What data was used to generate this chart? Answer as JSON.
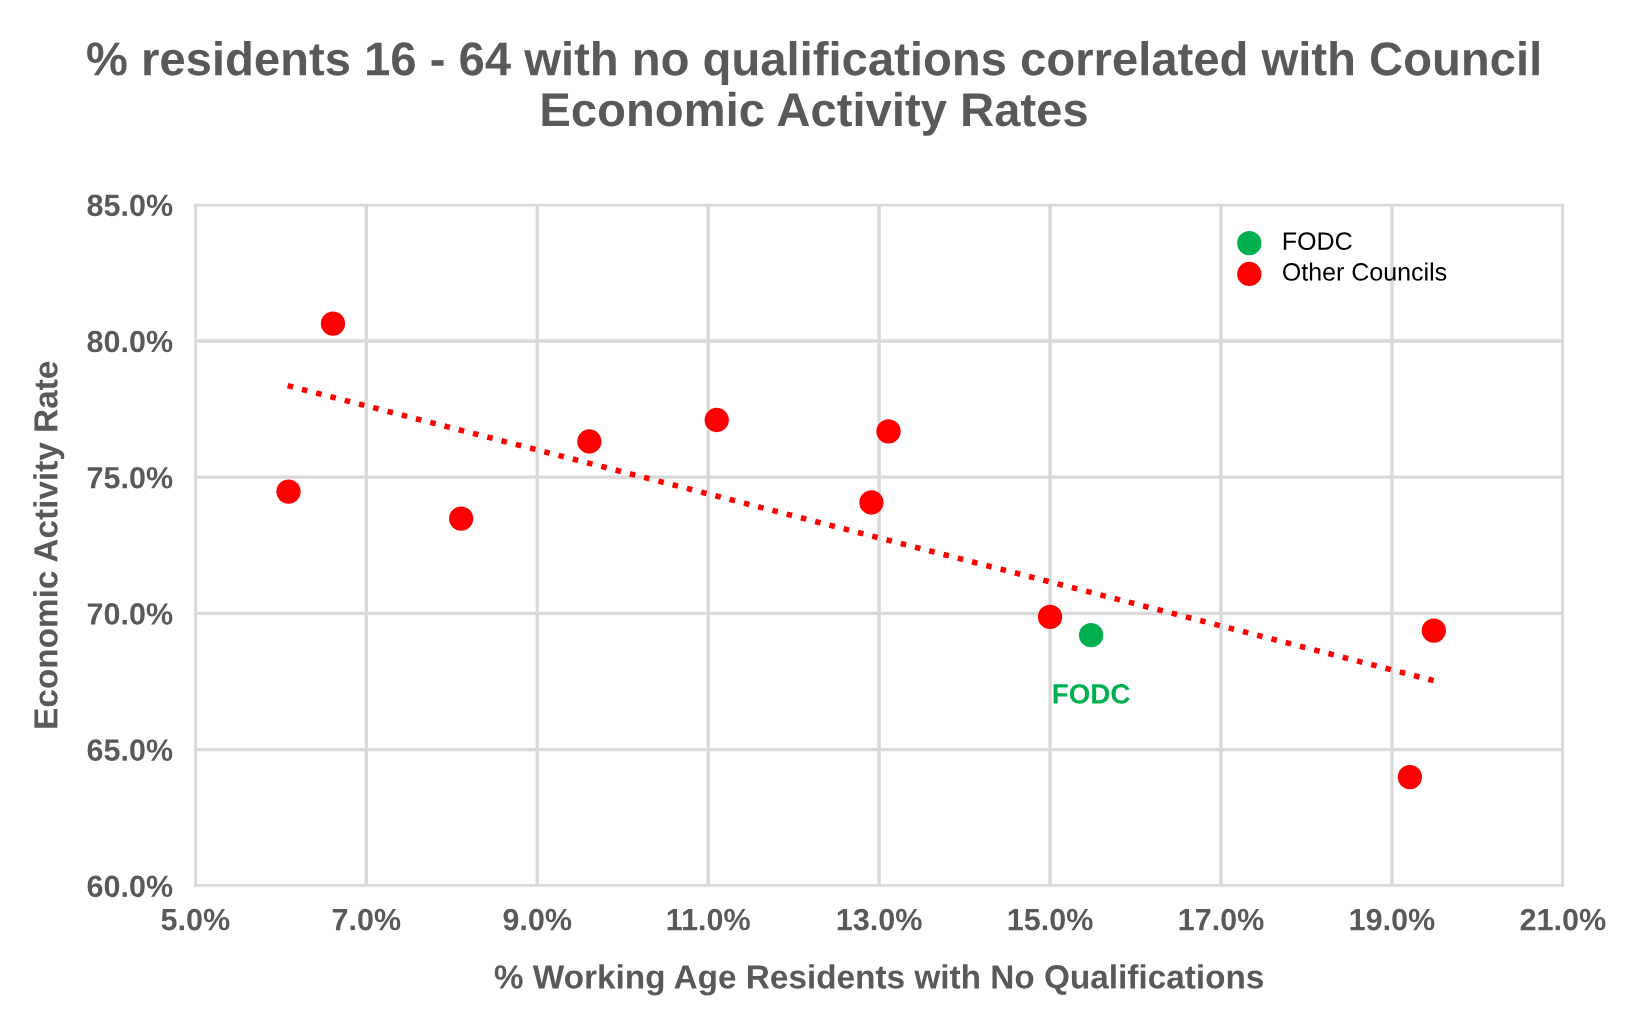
{
  "chart_data": {
    "type": "scatter",
    "title": "% residents 16 - 64 with no qualifications correlated with Council Economic Activity Rates",
    "xlabel": "% Working Age Residents with No Qualifications",
    "ylabel": "Economic Activity Rate",
    "series": [
      {
        "name": "FODC",
        "color": "#00b050",
        "x": [
          15.48
        ],
        "values": [
          69.2
        ]
      },
      {
        "name": "Other Councils",
        "color": "#ff0000",
        "x": [
          6.09,
          6.61,
          8.11,
          9.61,
          11.1,
          12.91,
          13.11,
          15.0,
          19.49,
          19.21
        ],
        "values": [
          74.47,
          80.64,
          73.48,
          76.31,
          77.1,
          74.07,
          76.68,
          69.87,
          69.37,
          63.99
        ]
      },
      {
        "type": "line",
        "color": "#ff0000",
        "line_style": "dotted",
        "marker": "none",
        "x": [
          6.08,
          19.49
        ],
        "values": [
          78.36,
          67.53
        ]
      }
    ],
    "annotations": [
      {
        "text": "FODC",
        "x": 15.48,
        "y": 69.2
      }
    ],
    "xlim": [
      5,
      21
    ],
    "ylim": [
      60,
      85
    ],
    "xticks": [
      {
        "value": 5,
        "label": "5.0%"
      },
      {
        "value": 7,
        "label": "7.0%"
      },
      {
        "value": 9,
        "label": "9.0%"
      },
      {
        "value": 11,
        "label": "11.0%"
      },
      {
        "value": 13,
        "label": "13.0%"
      },
      {
        "value": 15,
        "label": "15.0%"
      },
      {
        "value": 17,
        "label": "17.0%"
      },
      {
        "value": 19,
        "label": "19.0%"
      },
      {
        "value": 21,
        "label": "21.0%"
      }
    ],
    "yticks": [
      {
        "value": 60,
        "label": "60.0%"
      },
      {
        "value": 65,
        "label": "65.0%"
      },
      {
        "value": 70,
        "label": "70.0%"
      },
      {
        "value": 75,
        "label": "75.0%"
      },
      {
        "value": 80,
        "label": "80.0%"
      },
      {
        "value": 85,
        "label": "85.0%"
      }
    ],
    "grid": true,
    "legend": "top right",
    "marker": "circle"
  }
}
